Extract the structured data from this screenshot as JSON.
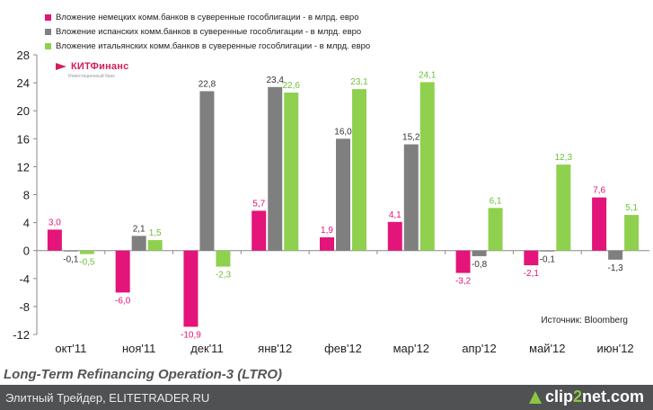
{
  "chart_data": {
    "type": "bar",
    "categories": [
      "окт'11",
      "ноя'11",
      "дек'11",
      "янв'12",
      "фев'12",
      "мар'12",
      "апр'12",
      "май'12",
      "июн'12"
    ],
    "series": [
      {
        "name": "Вложение немецких комм.банков в суверенные гособлигации - в млрд. евро",
        "color": "#e3147a",
        "values": [
          3.0,
          -6.0,
          -10.9,
          5.7,
          1.9,
          4.1,
          -3.2,
          -2.1,
          7.6
        ],
        "labels": [
          "3,0",
          "-6,0",
          "-10,9",
          "5,7",
          "1,9",
          "4,1",
          "-3,2",
          "-2,1",
          "7,6"
        ]
      },
      {
        "name": "Вложение испанских комм.банков в суверенные гособлигации - в млрд. евро",
        "color": "#7f7f7f",
        "values": [
          -0.1,
          2.1,
          22.8,
          23.4,
          16.0,
          15.2,
          -0.8,
          -0.1,
          -1.3
        ],
        "labels": [
          "-0,1",
          "2,1",
          "22,8",
          "23,4",
          "16,0",
          "15,2",
          "-0,8",
          "-0,1",
          "-1,3"
        ]
      },
      {
        "name": "Вложение итальянских комм.банков в суверенные гособлигации - в млрд. евро",
        "color": "#8fd14f",
        "values": [
          -0.5,
          1.5,
          -2.3,
          22.6,
          23.1,
          24.1,
          6.1,
          12.3,
          5.1
        ],
        "labels": [
          "-0,5",
          "1,5",
          "-2,3",
          "22,6",
          "23,1",
          "24,1",
          "6,1",
          "12,3",
          "5,1"
        ]
      }
    ],
    "yticks": [
      "28",
      "24",
      "20",
      "16",
      "12",
      "8",
      "4",
      "0",
      "-4",
      "-8",
      "-12"
    ],
    "ylim": [
      -12,
      28
    ],
    "source": "Источник: Bloomberg",
    "caption": "Long-Term Refinancing Operation-3 (LTRO)"
  },
  "logo": {
    "name": "КИТФинанс",
    "tagline": "Инвестиционный банк"
  },
  "footer": {
    "left": "Элитный Трейдер, ELITETRADER.RU",
    "brand_a": "clip",
    "brand_b": "2",
    "brand_c": "net.com"
  }
}
